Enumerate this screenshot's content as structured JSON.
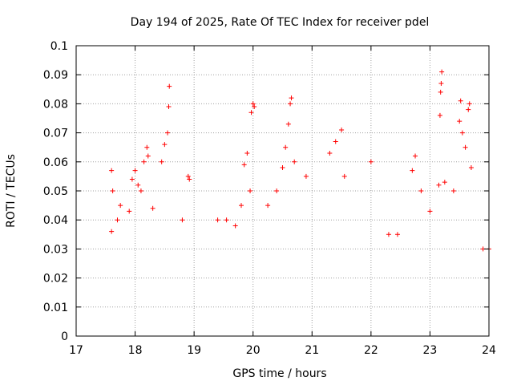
{
  "chart_data": {
    "type": "scatter",
    "title": "Day 194 of 2025, Rate Of TEC Index for receiver pdel",
    "xlabel": "GPS time / hours",
    "ylabel": "ROTI / TECUs",
    "xlim": [
      17,
      24
    ],
    "ylim": [
      0,
      0.1
    ],
    "x_ticks": [
      17,
      18,
      19,
      20,
      21,
      22,
      23,
      24
    ],
    "x_tick_labels": [
      "17",
      "18",
      "19",
      "20",
      "21",
      "22",
      "23",
      "24"
    ],
    "y_ticks": [
      0,
      0.01,
      0.02,
      0.03,
      0.04,
      0.05,
      0.06,
      0.07,
      0.08,
      0.09,
      0.1
    ],
    "y_tick_labels": [
      "0",
      "0.01",
      "0.02",
      "0.03",
      "0.04",
      "0.05",
      "0.06",
      "0.07",
      "0.08",
      "0.09",
      "0.1"
    ],
    "grid": true,
    "marker": "+",
    "color": "#ff0000",
    "data_range_x": [
      17.55,
      24.0
    ],
    "series": [
      {
        "name": "ROTI",
        "points": [
          [
            17.6,
            0.057
          ],
          [
            17.62,
            0.05
          ],
          [
            17.6,
            0.036
          ],
          [
            17.7,
            0.04
          ],
          [
            17.75,
            0.045
          ],
          [
            17.9,
            0.043
          ],
          [
            17.95,
            0.054
          ],
          [
            18.0,
            0.057
          ],
          [
            18.05,
            0.052
          ],
          [
            18.1,
            0.05
          ],
          [
            18.15,
            0.06
          ],
          [
            18.2,
            0.065
          ],
          [
            18.22,
            0.062
          ],
          [
            18.3,
            0.044
          ],
          [
            18.45,
            0.06
          ],
          [
            18.5,
            0.066
          ],
          [
            18.55,
            0.07
          ],
          [
            18.57,
            0.079
          ],
          [
            18.58,
            0.086
          ],
          [
            18.8,
            0.04
          ],
          [
            18.9,
            0.055
          ],
          [
            18.92,
            0.054
          ],
          [
            19.4,
            0.04
          ],
          [
            19.55,
            0.04
          ],
          [
            19.7,
            0.038
          ],
          [
            19.8,
            0.045
          ],
          [
            19.85,
            0.059
          ],
          [
            19.9,
            0.063
          ],
          [
            19.95,
            0.05
          ],
          [
            19.97,
            0.077
          ],
          [
            20.0,
            0.08
          ],
          [
            20.02,
            0.079
          ],
          [
            20.25,
            0.045
          ],
          [
            20.4,
            0.05
          ],
          [
            20.5,
            0.058
          ],
          [
            20.55,
            0.065
          ],
          [
            20.6,
            0.073
          ],
          [
            20.63,
            0.08
          ],
          [
            20.65,
            0.082
          ],
          [
            20.7,
            0.06
          ],
          [
            20.9,
            0.055
          ],
          [
            21.3,
            0.063
          ],
          [
            21.4,
            0.067
          ],
          [
            21.5,
            0.071
          ],
          [
            21.55,
            0.055
          ],
          [
            22.0,
            0.06
          ],
          [
            22.3,
            0.035
          ],
          [
            22.45,
            0.035
          ],
          [
            22.7,
            0.057
          ],
          [
            22.75,
            0.062
          ],
          [
            22.85,
            0.05
          ],
          [
            23.0,
            0.043
          ],
          [
            23.15,
            0.052
          ],
          [
            23.17,
            0.076
          ],
          [
            23.18,
            0.084
          ],
          [
            23.19,
            0.087
          ],
          [
            23.2,
            0.091
          ],
          [
            23.25,
            0.053
          ],
          [
            23.4,
            0.05
          ],
          [
            23.5,
            0.074
          ],
          [
            23.52,
            0.081
          ],
          [
            23.55,
            0.07
          ],
          [
            23.6,
            0.065
          ],
          [
            23.65,
            0.078
          ],
          [
            23.67,
            0.08
          ],
          [
            23.7,
            0.058
          ],
          [
            23.9,
            0.03
          ],
          [
            24.0,
            0.03
          ]
        ]
      }
    ]
  }
}
